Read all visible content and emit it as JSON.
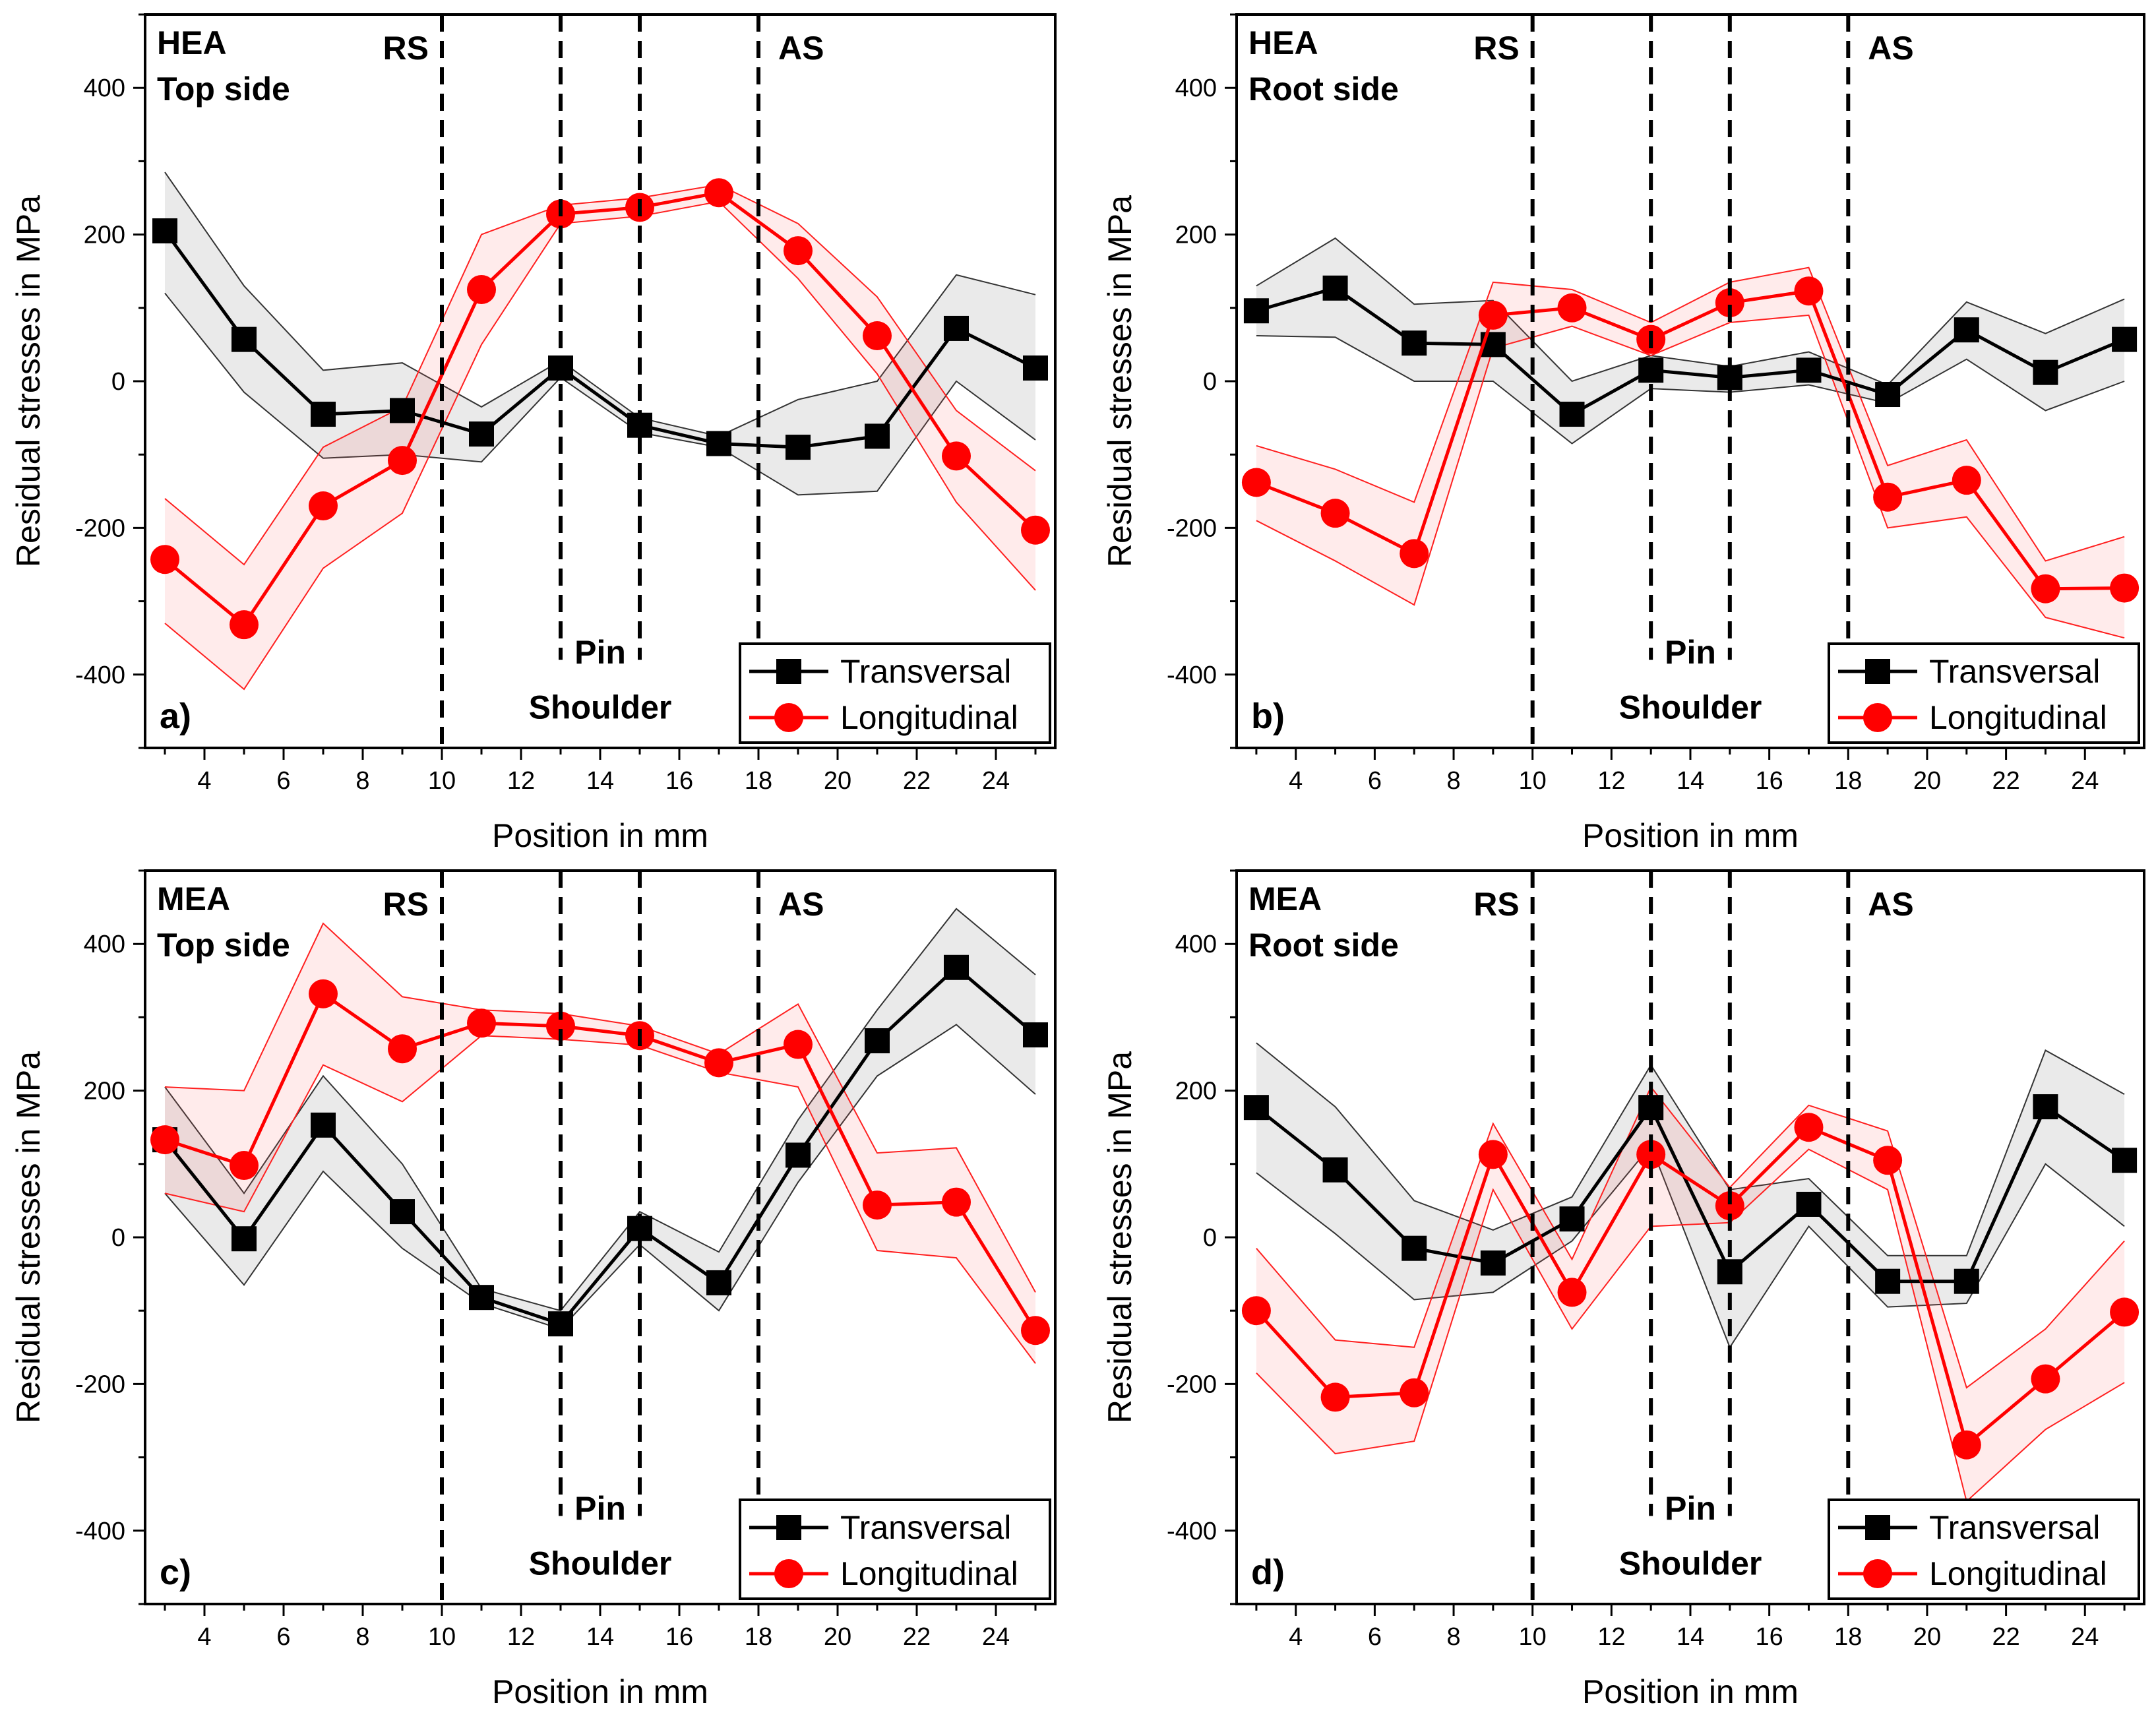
{
  "chart_data": [
    {
      "type": "line",
      "panel_label": "a)",
      "title_lines": [
        "HEA",
        "Top side"
      ],
      "xlabel": "Position in mm",
      "ylabel": "Residual stresses in MPa",
      "xlim": [
        2.5,
        25.5
      ],
      "ylim": [
        -500,
        500
      ],
      "xticks": [
        4,
        6,
        8,
        10,
        12,
        14,
        16,
        18,
        20,
        22,
        24
      ],
      "yticks": [
        -400,
        -200,
        0,
        200,
        400
      ],
      "x": [
        3,
        5,
        7,
        9,
        11,
        13,
        15,
        17,
        19,
        21,
        23,
        25
      ],
      "series": [
        {
          "name": "Transversal",
          "color": "#000000",
          "marker": "square",
          "values": [
            205,
            57,
            -45,
            -40,
            -72,
            18,
            -60,
            -85,
            -90,
            -75,
            72,
            18
          ],
          "lower": [
            120,
            -15,
            -105,
            -100,
            -110,
            5,
            -70,
            -90,
            -155,
            -150,
            0,
            -80
          ],
          "upper": [
            285,
            130,
            15,
            25,
            -35,
            28,
            -50,
            -75,
            -25,
            0,
            145,
            118
          ]
        },
        {
          "name": "Longitudinal",
          "color": "#ff0000",
          "marker": "circle",
          "values": [
            -243,
            -332,
            -170,
            -108,
            125,
            228,
            237,
            257,
            178,
            62,
            -102,
            -203
          ],
          "lower": [
            -330,
            -420,
            -255,
            -180,
            50,
            215,
            225,
            245,
            140,
            10,
            -165,
            -285
          ],
          "upper": [
            -160,
            -250,
            -90,
            -35,
            200,
            240,
            250,
            268,
            215,
            115,
            -40,
            -122
          ]
        }
      ],
      "vlines": [
        {
          "x": 10,
          "label": "RS",
          "y_from": -500,
          "y_to": 500
        },
        {
          "x": 13,
          "label": "",
          "y_from": -380,
          "y_to": 500
        },
        {
          "x": 15,
          "label": "",
          "y_from": -380,
          "y_to": 500
        },
        {
          "x": 18,
          "label": "AS",
          "y_from": -500,
          "y_to": 500
        }
      ],
      "annotations": {
        "pin": "Pin",
        "shoulder": "Shoulder"
      },
      "legend": {
        "location": "bottom-right"
      }
    },
    {
      "type": "line",
      "panel_label": "b)",
      "title_lines": [
        "HEA",
        "Root side"
      ],
      "xlabel": "Position in mm",
      "ylabel": "Residual stresses in MPa",
      "xlim": [
        2.5,
        25.5
      ],
      "ylim": [
        -500,
        500
      ],
      "xticks": [
        4,
        6,
        8,
        10,
        12,
        14,
        16,
        18,
        20,
        22,
        24
      ],
      "yticks": [
        -400,
        -200,
        0,
        200,
        400
      ],
      "x": [
        3,
        5,
        7,
        9,
        11,
        13,
        15,
        17,
        19,
        21,
        23,
        25
      ],
      "series": [
        {
          "name": "Transversal",
          "color": "#000000",
          "marker": "square",
          "values": [
            96,
            127,
            52,
            50,
            -45,
            15,
            5,
            15,
            -18,
            70,
            12,
            57
          ],
          "lower": [
            62,
            60,
            0,
            0,
            -85,
            -10,
            -15,
            -5,
            -30,
            30,
            -40,
            0
          ],
          "upper": [
            130,
            195,
            105,
            110,
            0,
            35,
            20,
            40,
            -5,
            108,
            65,
            112
          ]
        },
        {
          "name": "Longitudinal",
          "color": "#ff0000",
          "marker": "circle",
          "values": [
            -138,
            -180,
            -235,
            90,
            100,
            57,
            107,
            123,
            -158,
            -135,
            -283,
            -282
          ],
          "lower": [
            -190,
            -245,
            -305,
            45,
            75,
            35,
            80,
            90,
            -200,
            -185,
            -322,
            -350
          ],
          "upper": [
            -88,
            -120,
            -165,
            135,
            125,
            80,
            135,
            155,
            -115,
            -80,
            -245,
            -212
          ]
        }
      ],
      "vlines": [
        {
          "x": 10,
          "label": "RS",
          "y_from": -500,
          "y_to": 500
        },
        {
          "x": 13,
          "label": "",
          "y_from": -380,
          "y_to": 500
        },
        {
          "x": 15,
          "label": "",
          "y_from": -380,
          "y_to": 500
        },
        {
          "x": 18,
          "label": "AS",
          "y_from": -500,
          "y_to": 500
        }
      ],
      "annotations": {
        "pin": "Pin",
        "shoulder": "Shoulder"
      },
      "legend": {
        "location": "bottom-right"
      }
    },
    {
      "type": "line",
      "panel_label": "c)",
      "title_lines": [
        "MEA",
        "Top side"
      ],
      "xlabel": "Position in mm",
      "ylabel": "Residual stresses in MPa",
      "xlim": [
        2.5,
        25.5
      ],
      "ylim": [
        -500,
        500
      ],
      "xticks": [
        4,
        6,
        8,
        10,
        12,
        14,
        16,
        18,
        20,
        22,
        24
      ],
      "yticks": [
        -400,
        -200,
        0,
        200,
        400
      ],
      "x": [
        3,
        5,
        7,
        9,
        11,
        13,
        15,
        17,
        19,
        21,
        23,
        25
      ],
      "series": [
        {
          "name": "Transversal",
          "color": "#000000",
          "marker": "square",
          "values": [
            133,
            -2,
            153,
            35,
            -82,
            -118,
            12,
            -62,
            112,
            268,
            368,
            276
          ],
          "lower": [
            60,
            -65,
            90,
            -15,
            -90,
            -125,
            -10,
            -100,
            75,
            220,
            290,
            195
          ],
          "upper": [
            205,
            60,
            220,
            100,
            -70,
            -100,
            35,
            -20,
            160,
            310,
            448,
            358
          ]
        },
        {
          "name": "Longitudinal",
          "color": "#ff0000",
          "marker": "circle",
          "values": [
            133,
            98,
            332,
            257,
            292,
            288,
            275,
            238,
            263,
            44,
            48,
            -127
          ],
          "lower": [
            60,
            35,
            235,
            185,
            275,
            270,
            262,
            225,
            205,
            -18,
            -28,
            -172
          ],
          "upper": [
            205,
            200,
            428,
            328,
            310,
            305,
            288,
            250,
            318,
            115,
            122,
            -75
          ]
        }
      ],
      "vlines": [
        {
          "x": 10,
          "label": "RS",
          "y_from": -500,
          "y_to": 500
        },
        {
          "x": 13,
          "label": "",
          "y_from": -380,
          "y_to": 500
        },
        {
          "x": 15,
          "label": "",
          "y_from": -380,
          "y_to": 500
        },
        {
          "x": 18,
          "label": "AS",
          "y_from": -500,
          "y_to": 500
        }
      ],
      "annotations": {
        "pin": "Pin",
        "shoulder": "Shoulder"
      },
      "legend": {
        "location": "bottom-right"
      }
    },
    {
      "type": "line",
      "panel_label": "d)",
      "title_lines": [
        "MEA",
        "Root side"
      ],
      "xlabel": "Position in mm",
      "ylabel": "Residual stresses in MPa",
      "xlim": [
        2.5,
        25.5
      ],
      "ylim": [
        -500,
        500
      ],
      "xticks": [
        4,
        6,
        8,
        10,
        12,
        14,
        16,
        18,
        20,
        22,
        24
      ],
      "yticks": [
        -400,
        -200,
        0,
        200,
        400
      ],
      "x": [
        3,
        5,
        7,
        9,
        11,
        13,
        15,
        17,
        19,
        21,
        23,
        25
      ],
      "series": [
        {
          "name": "Transversal",
          "color": "#000000",
          "marker": "square",
          "values": [
            177,
            92,
            -15,
            -35,
            25,
            177,
            -47,
            45,
            -60,
            -60,
            178,
            105
          ],
          "lower": [
            88,
            5,
            -85,
            -75,
            -5,
            125,
            -150,
            15,
            -95,
            -90,
            100,
            15
          ],
          "upper": [
            265,
            178,
            50,
            10,
            55,
            235,
            65,
            80,
            -25,
            -25,
            255,
            195
          ]
        },
        {
          "name": "Longitudinal",
          "color": "#ff0000",
          "marker": "circle",
          "values": [
            -100,
            -218,
            -212,
            113,
            -75,
            113,
            43,
            150,
            105,
            -283,
            -193,
            -102
          ],
          "lower": [
            -185,
            -295,
            -278,
            65,
            -125,
            15,
            20,
            120,
            65,
            -360,
            -262,
            -198
          ],
          "upper": [
            -15,
            -140,
            -150,
            155,
            -30,
            205,
            68,
            180,
            145,
            -205,
            -125,
            -5
          ]
        }
      ],
      "vlines": [
        {
          "x": 10,
          "label": "RS",
          "y_from": -500,
          "y_to": 500
        },
        {
          "x": 13,
          "label": "",
          "y_from": -380,
          "y_to": 500
        },
        {
          "x": 15,
          "label": "",
          "y_from": -380,
          "y_to": 500
        },
        {
          "x": 18,
          "label": "AS",
          "y_from": -500,
          "y_to": 500
        }
      ],
      "annotations": {
        "pin": "Pin",
        "shoulder": "Shoulder"
      },
      "legend": {
        "location": "bottom-right"
      }
    }
  ]
}
